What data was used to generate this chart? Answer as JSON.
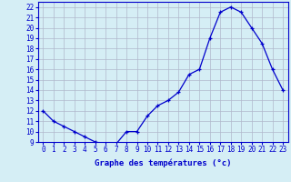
{
  "hours": [
    0,
    1,
    2,
    3,
    4,
    5,
    6,
    7,
    8,
    9,
    10,
    11,
    12,
    13,
    14,
    15,
    16,
    17,
    18,
    19,
    20,
    21,
    22,
    23
  ],
  "temps": [
    12,
    11,
    10.5,
    10,
    9.5,
    9,
    8.8,
    8.8,
    10,
    10,
    11.5,
    12.5,
    13,
    13.8,
    15.5,
    16,
    19,
    21.5,
    22,
    21.5,
    20,
    18.5,
    16,
    14
  ],
  "xlabel": "Graphe des températures (°c)",
  "bg_color": "#d5eef5",
  "line_color": "#0000cc",
  "grid_color": "#b0b8cc",
  "ylim": [
    9,
    22.5
  ],
  "yticks": [
    9,
    10,
    11,
    12,
    13,
    14,
    15,
    16,
    17,
    18,
    19,
    20,
    21,
    22
  ],
  "xticks": [
    0,
    1,
    2,
    3,
    4,
    5,
    6,
    7,
    8,
    9,
    10,
    11,
    12,
    13,
    14,
    15,
    16,
    17,
    18,
    19,
    20,
    21,
    22,
    23
  ],
  "xtick_labels": [
    "0",
    "1",
    "2",
    "3",
    "4",
    "5",
    "6",
    "7",
    "8",
    "9",
    "10",
    "11",
    "12",
    "13",
    "14",
    "15",
    "16",
    "17",
    "18",
    "19",
    "20",
    "21",
    "22",
    "23"
  ],
  "ytick_labels": [
    "9",
    "10",
    "11",
    "12",
    "13",
    "14",
    "15",
    "16",
    "17",
    "18",
    "19",
    "20",
    "21",
    "22"
  ],
  "xlabel_fontsize": 6.5,
  "tick_fontsize": 5.5
}
